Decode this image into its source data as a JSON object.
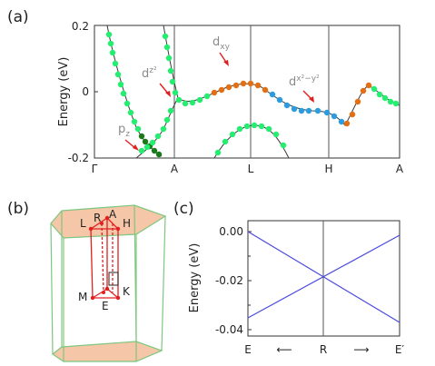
{
  "panel_a": {
    "label": "(a)",
    "ylabel": "Energy (eV)",
    "yticks": [
      "0.2",
      "0",
      "-0.2"
    ],
    "xticks": [
      "Γ",
      "A",
      "L",
      "H",
      "A"
    ],
    "annotations": {
      "dz2_main": "d",
      "dz2_sub": "z²",
      "dxy_main": "d",
      "dxy_sub": "xy",
      "dx2y2_main": "d",
      "dx2y2_sub": "x²−y²",
      "pz_main": "p",
      "pz_sub": "z"
    },
    "colors": {
      "green": "#22ee6f",
      "dark_green": "#1a7a1a",
      "orange": "#e36f12",
      "blue": "#2b9ce0",
      "line": "#333333"
    }
  },
  "panel_b": {
    "label": "(b)",
    "points": {
      "L": "L",
      "R": "R",
      "A": "A",
      "H": "H",
      "M": "M",
      "K": "K",
      "E": "E",
      "Gamma": "Γ"
    },
    "colors": {
      "face": "#f6c6a8",
      "edge": "#7ec77e",
      "path": "#e02020"
    }
  },
  "panel_c": {
    "label": "(c)",
    "ylabel": "Energy (eV)",
    "yticks": [
      "0.00",
      "-0.02",
      "-0.04"
    ],
    "xticks": [
      "E",
      "R",
      "E′"
    ],
    "arrows": {
      "left": "⟵",
      "right": "⟶"
    },
    "colors": {
      "line": "#4a4adf",
      "vline": "#333333"
    }
  }
}
